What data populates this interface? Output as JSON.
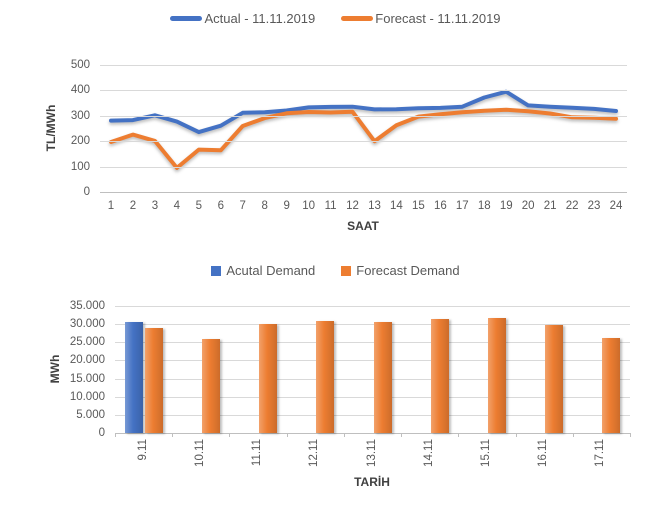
{
  "colors": {
    "actual_blue": "#4472C4",
    "forecast_orange": "#ED7D31",
    "gridline": "#D9D9D9",
    "axis_line": "#BFBFBF",
    "tick_text": "#595959",
    "title_text": "#404040"
  },
  "chart_data": [
    {
      "type": "line",
      "xlabel": "SAAT",
      "ylabel": "TL/MWh",
      "ylim": [
        0,
        500
      ],
      "grid": true,
      "legend_position": "top-center",
      "x": [
        1,
        2,
        3,
        4,
        5,
        6,
        7,
        8,
        9,
        10,
        11,
        12,
        13,
        14,
        15,
        16,
        17,
        18,
        19,
        20,
        21,
        22,
        23,
        24
      ],
      "ytick_values": [
        0,
        100,
        200,
        300,
        400,
        500
      ],
      "ytick_labels": [
        "0",
        "100",
        "200",
        "300",
        "400",
        "500"
      ],
      "series": [
        {
          "name": "Actual - 11.11.2019",
          "color": "#4472C4",
          "values": [
            281,
            283,
            302,
            277,
            236,
            261,
            312,
            314,
            321,
            333,
            335,
            336,
            325,
            326,
            330,
            331,
            336,
            372,
            395,
            341,
            336,
            332,
            327,
            319
          ]
        },
        {
          "name": "Forecast - 11.11.2019",
          "color": "#ED7D31",
          "values": [
            197,
            226,
            201,
            95,
            167,
            164,
            260,
            291,
            310,
            315,
            313,
            316,
            200,
            263,
            297,
            306,
            314,
            320,
            324,
            318,
            309,
            294,
            292,
            288
          ]
        }
      ]
    },
    {
      "type": "bar",
      "xlabel": "TARİH",
      "ylabel": "MWh",
      "ylim": [
        0,
        35000
      ],
      "grid": true,
      "legend_position": "top-center",
      "categories": [
        "9.11",
        "10.11",
        "11.11",
        "12.11",
        "13.11",
        "14.11",
        "15.11",
        "16.11",
        "17.11"
      ],
      "ytick_values": [
        0,
        5000,
        10000,
        15000,
        20000,
        25000,
        30000,
        35000
      ],
      "ytick_labels": [
        "0",
        "5.000",
        "10.000",
        "15.000",
        "20.000",
        "25.000",
        "30.000",
        "35.000"
      ],
      "series": [
        {
          "name": "Acutal Demand",
          "color": "#4472C4",
          "values": [
            30600,
            null,
            null,
            null,
            null,
            null,
            null,
            null,
            null
          ]
        },
        {
          "name": "Forecast Demand",
          "color": "#ED7D31",
          "values": [
            29000,
            26000,
            30000,
            30800,
            30700,
            31400,
            31700,
            29800,
            26200
          ]
        }
      ]
    }
  ]
}
